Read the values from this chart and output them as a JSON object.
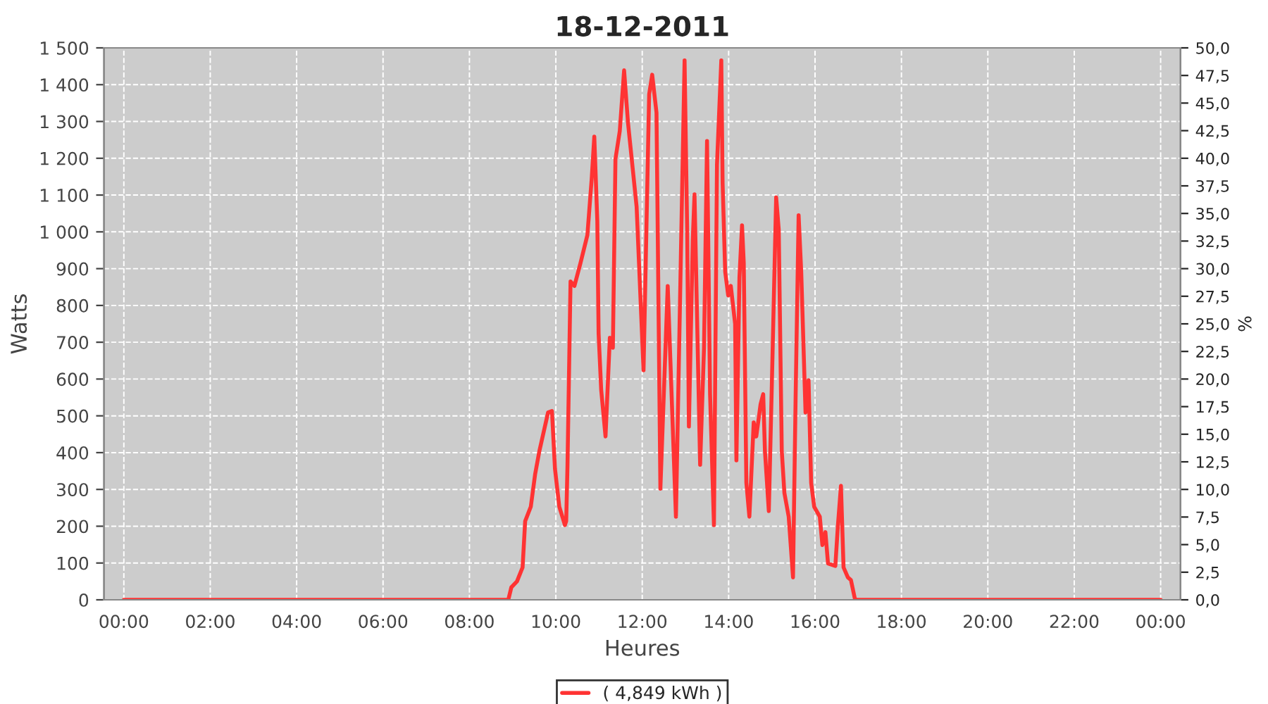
{
  "chart_data": {
    "type": "line",
    "title": "18-12-2011",
    "xlabel": "Heures",
    "ylabel": "Watts",
    "y2label": "%",
    "series": [
      {
        "name": "( 4,849 kWh )",
        "color": "#ff3333",
        "x": [
          0,
          8.9,
          8.97,
          9.1,
          9.23,
          9.29,
          9.42,
          9.52,
          9.62,
          9.82,
          9.91,
          9.98,
          10.08,
          10.21,
          10.24,
          10.27,
          10.34,
          10.43,
          10.57,
          10.73,
          10.83,
          10.89,
          10.96,
          10.99,
          11.05,
          11.15,
          11.25,
          11.32,
          11.38,
          11.48,
          11.58,
          11.67,
          11.87,
          12.03,
          12.16,
          12.23,
          12.33,
          12.42,
          12.59,
          12.78,
          12.98,
          13.04,
          13.08,
          13.17,
          13.21,
          13.34,
          13.43,
          13.5,
          13.57,
          13.66,
          13.73,
          13.83,
          13.86,
          13.92,
          13.99,
          14.05,
          14.15,
          14.18,
          14.25,
          14.31,
          14.35,
          14.41,
          14.48,
          14.51,
          14.58,
          14.64,
          14.74,
          14.8,
          14.84,
          14.93,
          15.0,
          15.1,
          15.16,
          15.23,
          15.29,
          15.39,
          15.49,
          15.55,
          15.62,
          15.68,
          15.78,
          15.85,
          15.91,
          15.98,
          16.11,
          16.17,
          16.24,
          16.3,
          16.47,
          16.53,
          16.6,
          16.66,
          16.76,
          16.83,
          16.92,
          16.96,
          24
        ],
        "values": [
          0,
          0,
          34,
          50,
          88,
          214,
          253,
          341,
          405,
          509,
          513,
          356,
          253,
          203,
          214,
          367,
          865,
          853,
          915,
          991,
          1144,
          1259,
          1029,
          723,
          570,
          444,
          712,
          685,
          1198,
          1274,
          1439,
          1297,
          1068,
          624,
          1374,
          1427,
          1324,
          302,
          853,
          226,
          1466,
          1006,
          471,
          980,
          1102,
          367,
          685,
          1247,
          559,
          203,
          1182,
          1466,
          1133,
          892,
          827,
          853,
          750,
          379,
          876,
          1018,
          915,
          318,
          226,
          302,
          482,
          444,
          532,
          559,
          405,
          241,
          585,
          1094,
          1006,
          405,
          291,
          226,
          61,
          547,
          1045,
          892,
          509,
          597,
          318,
          253,
          226,
          149,
          184,
          99,
          92,
          203,
          310,
          88,
          61,
          54,
          4,
          0,
          0
        ]
      }
    ],
    "xlim": [
      -0.46,
      24.46
    ],
    "xticks": [
      {
        "value": 0,
        "label": "00:00"
      },
      {
        "value": 2,
        "label": "02:00"
      },
      {
        "value": 4,
        "label": "04:00"
      },
      {
        "value": 6,
        "label": "06:00"
      },
      {
        "value": 8,
        "label": "08:00"
      },
      {
        "value": 10,
        "label": "10:00"
      },
      {
        "value": 12,
        "label": "12:00"
      },
      {
        "value": 14,
        "label": "14:00"
      },
      {
        "value": 16,
        "label": "16:00"
      },
      {
        "value": 18,
        "label": "18:00"
      },
      {
        "value": 20,
        "label": "20:00"
      },
      {
        "value": 22,
        "label": "22:00"
      },
      {
        "value": 24,
        "label": "00:00"
      }
    ],
    "ylim": [
      0,
      1500
    ],
    "yticks": [
      0,
      100,
      200,
      300,
      400,
      500,
      600,
      700,
      800,
      900,
      {
        "value": 1000,
        "label": "1 000"
      },
      {
        "value": 1100,
        "label": "1 100"
      },
      {
        "value": 1200,
        "label": "1 200"
      },
      {
        "value": 1300,
        "label": "1 300"
      },
      {
        "value": 1400,
        "label": "1 400"
      },
      {
        "value": 1500,
        "label": "1 500"
      }
    ],
    "y2lim": [
      0,
      50
    ],
    "y2ticks": [
      {
        "value": 0,
        "label": "0,0"
      },
      {
        "value": 2.5,
        "label": "2,5"
      },
      {
        "value": 5,
        "label": "5,0"
      },
      {
        "value": 7.5,
        "label": "7,5"
      },
      {
        "value": 10,
        "label": "10,0"
      },
      {
        "value": 12.5,
        "label": "12,5"
      },
      {
        "value": 15,
        "label": "15,0"
      },
      {
        "value": 17.5,
        "label": "17,5"
      },
      {
        "value": 20,
        "label": "20,0"
      },
      {
        "value": 22.5,
        "label": "22,5"
      },
      {
        "value": 25,
        "label": "25,0"
      },
      {
        "value": 27.5,
        "label": "27,5"
      },
      {
        "value": 30,
        "label": "30,0"
      },
      {
        "value": 32.5,
        "label": "32,5"
      },
      {
        "value": 35,
        "label": "35,0"
      },
      {
        "value": 37.5,
        "label": "37,5"
      },
      {
        "value": 40,
        "label": "40,0"
      },
      {
        "value": 42.5,
        "label": "42,5"
      },
      {
        "value": 45,
        "label": "45,0"
      },
      {
        "value": 47.5,
        "label": "47,5"
      },
      {
        "value": 50,
        "label": "50,0"
      }
    ],
    "grid": true,
    "legend": "bottom",
    "marker": "none",
    "line_style": "solid"
  }
}
